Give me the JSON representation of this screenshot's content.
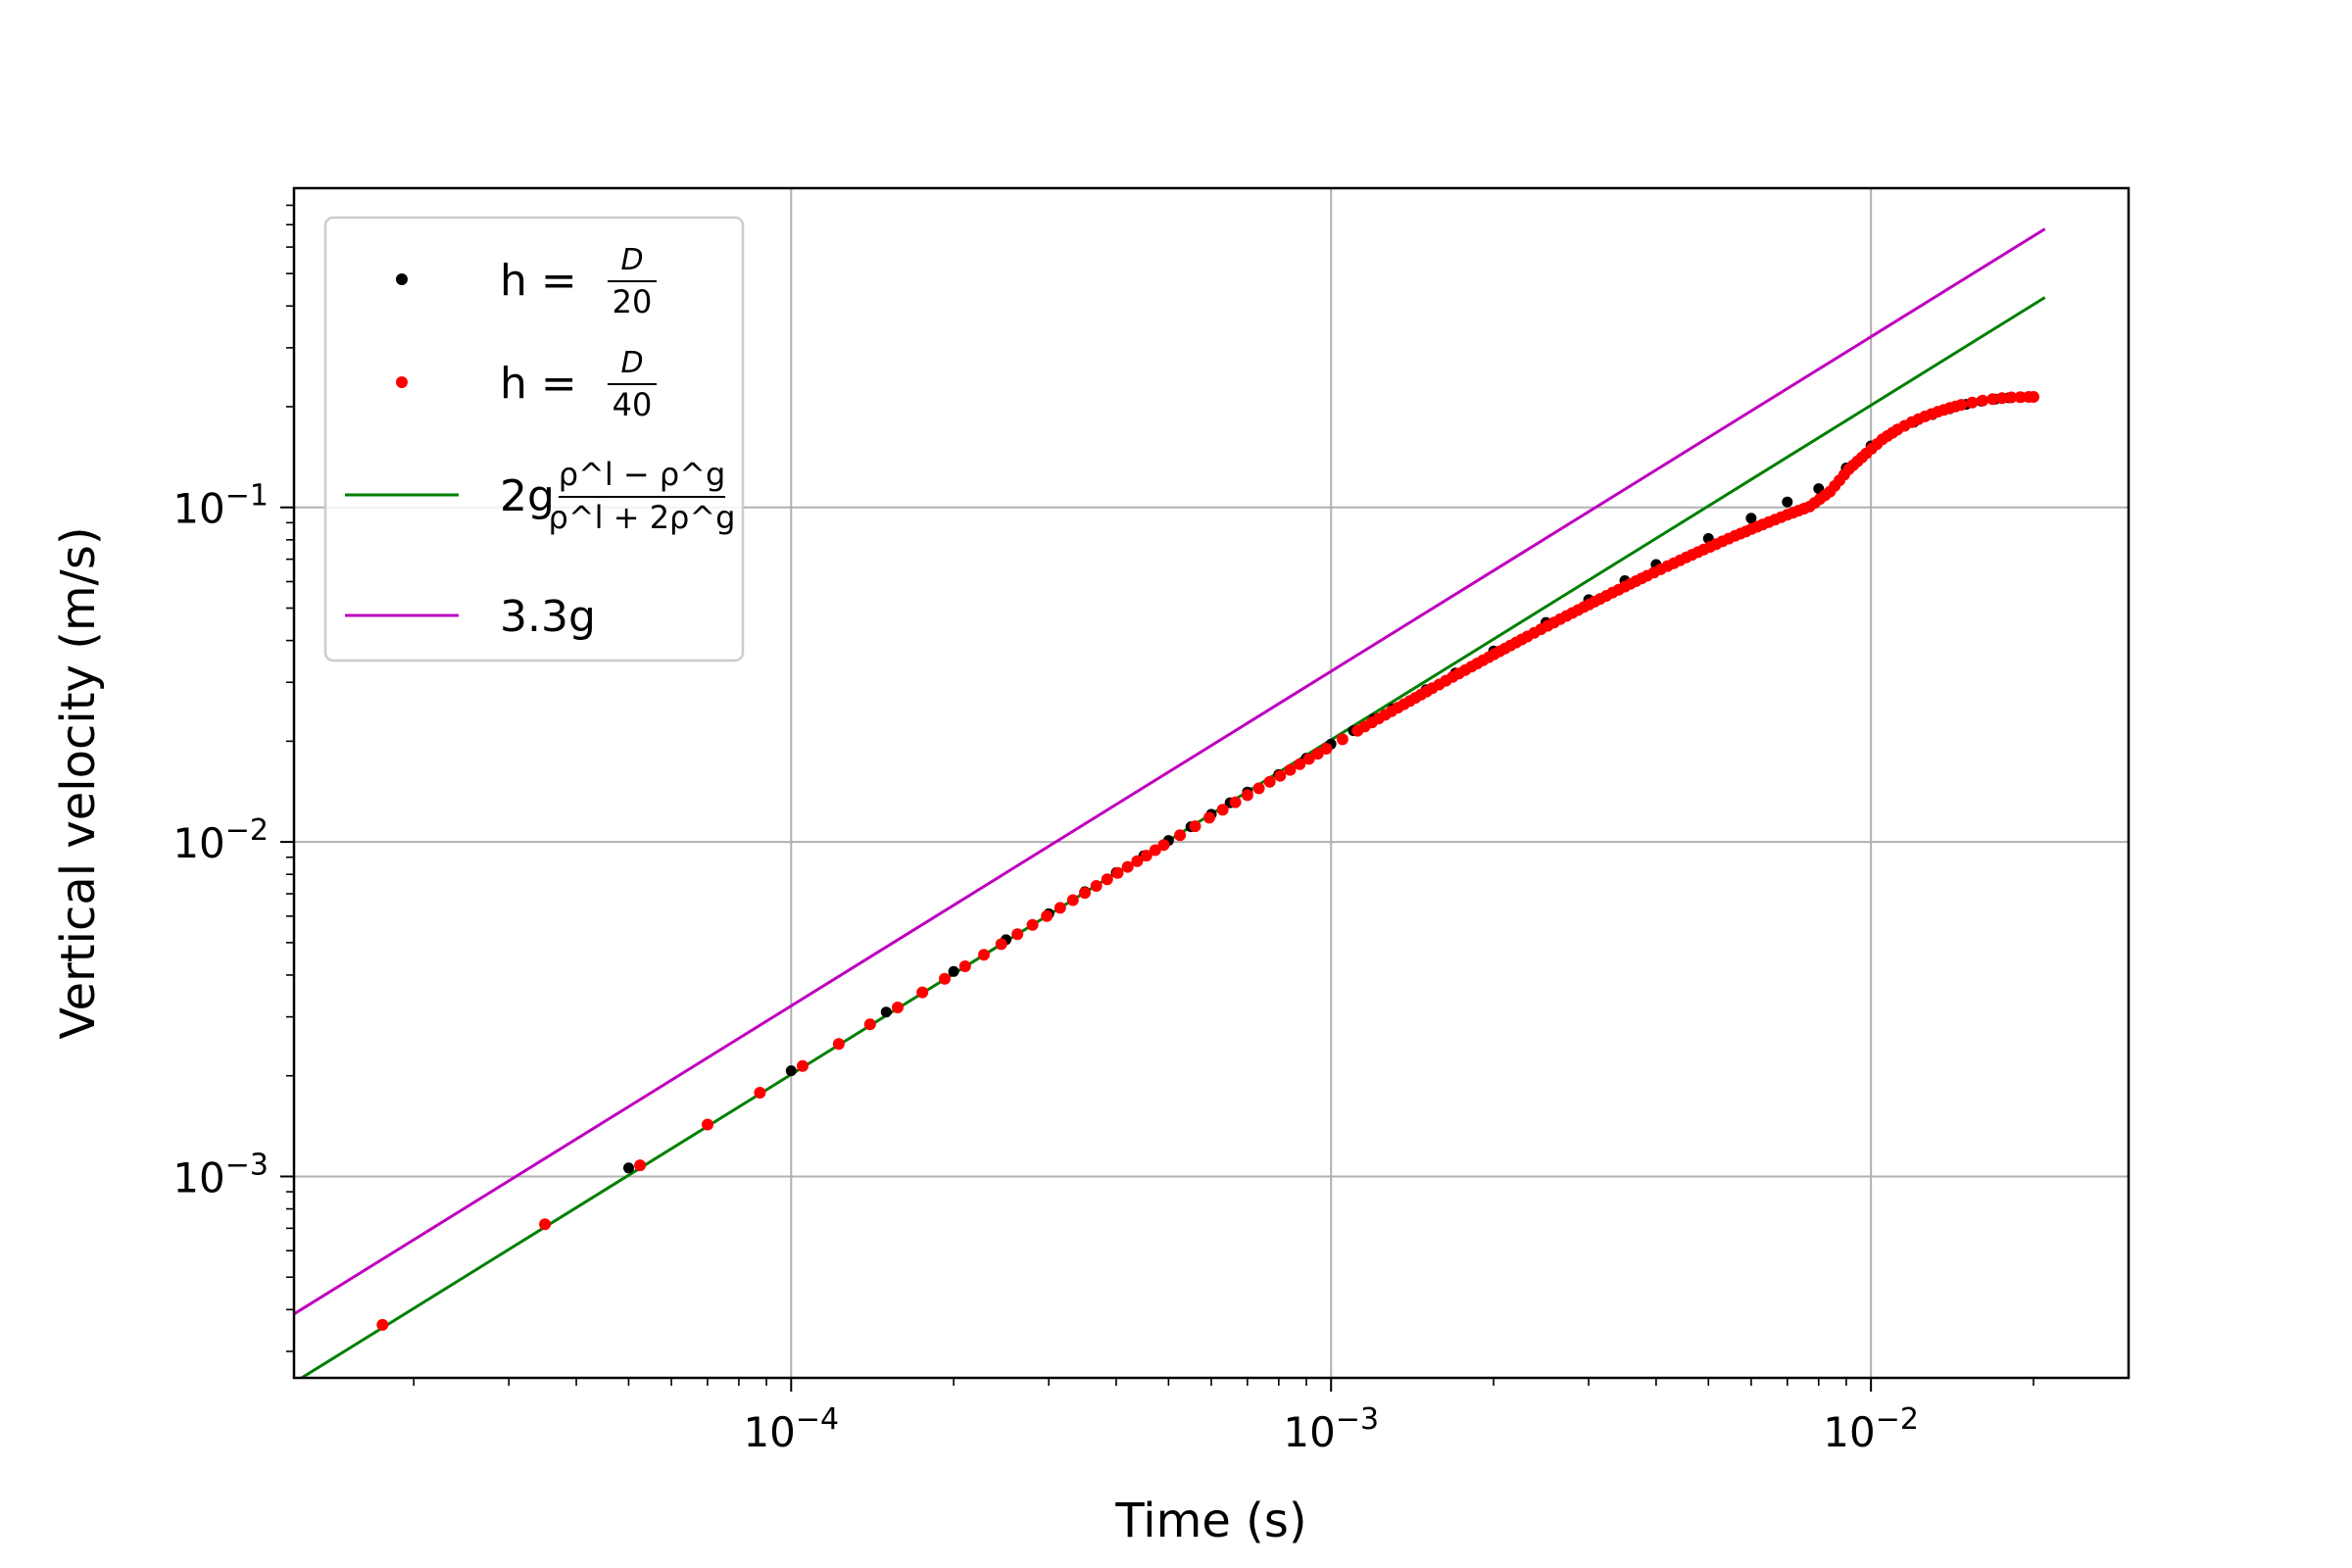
{
  "chart_data": {
    "type": "scatter",
    "xlabel": "Time (s)",
    "ylabel": "Vertical velocity (m/s)",
    "xscale": "log",
    "yscale": "log",
    "xlim": [
      1.2e-05,
      0.03
    ],
    "ylim": [
      0.00025,
      0.9
    ],
    "grid": true,
    "legend_position": "top-left",
    "x_ticks": [
      {
        "value": 0.0001,
        "base": "10",
        "exp": "−4"
      },
      {
        "value": 0.001,
        "base": "10",
        "exp": "−3"
      },
      {
        "value": 0.01,
        "base": "10",
        "exp": "−2"
      }
    ],
    "y_ticks": [
      {
        "value": 0.001,
        "base": "10",
        "exp": "−3"
      },
      {
        "value": 0.01,
        "base": "10",
        "exp": "−2"
      },
      {
        "value": 0.1,
        "base": "10",
        "exp": "−1"
      }
    ],
    "series": [
      {
        "name": "h = D/20",
        "legend": {
          "prefix": "h = ",
          "num": "D",
          "den": "20"
        },
        "kind": "scatter",
        "color": "#000000",
        "x": [
          5e-05,
          0.0001,
          0.00015,
          0.0002,
          0.00025,
          0.0003,
          0.00035,
          0.0004,
          0.00045,
          0.0005,
          0.00055,
          0.0006,
          0.00065,
          0.0007,
          0.0008,
          0.0009,
          0.001,
          0.0011,
          0.0012,
          0.0013,
          0.0015,
          0.0017,
          0.002,
          0.0025,
          0.003,
          0.0035,
          0.004,
          0.005,
          0.006,
          0.007,
          0.008,
          0.009,
          0.01,
          0.011,
          0.012,
          0.013,
          0.014,
          0.015,
          0.016,
          0.017,
          0.018,
          0.019,
          0.02
        ],
        "y": [
          0.00106,
          0.00207,
          0.0031,
          0.0041,
          0.0051,
          0.0061,
          0.0071,
          0.0081,
          0.0091,
          0.0101,
          0.0111,
          0.0121,
          0.0131,
          0.0141,
          0.0159,
          0.0178,
          0.0196,
          0.0215,
          0.0233,
          0.025,
          0.0285,
          0.032,
          0.0372,
          0.0453,
          0.053,
          0.0604,
          0.0675,
          0.0807,
          0.0928,
          0.1038,
          0.1138,
          0.1312,
          0.1527,
          0.1675,
          0.1796,
          0.1894,
          0.1971,
          0.2032,
          0.2077,
          0.2108,
          0.2126,
          0.2134,
          0.2137
        ]
      },
      {
        "name": "h = D/40",
        "legend": {
          "prefix": "h = ",
          "num": "D",
          "den": "40"
        },
        "kind": "scatter",
        "color": "#ff0000",
        "x": [
          1.75e-05,
          3.5e-05,
          5.25e-05,
          7e-05,
          8.75e-05,
          0.000105,
          0.0001225,
          0.00014,
          0.0001575,
          0.000175,
          0.0001925,
          0.00021,
          0.0002275,
          0.000245,
          0.0002625,
          0.00028,
          0.0002975,
          0.000315,
          0.0003325,
          0.00035,
          0.0003675,
          0.000385,
          0.0004025,
          0.00042,
          0.0004375,
          0.000455,
          0.0004725,
          0.00049,
          0.000525,
          0.00056,
          0.000595,
          0.00063,
          0.000665,
          0.0007,
          0.000735,
          0.00077,
          0.000805,
          0.00084,
          0.000875,
          0.00091,
          0.000945,
          0.00098,
          0.00105,
          0.00112,
          0.00119,
          0.00126,
          0.00133,
          0.0014,
          0.00154,
          0.00168,
          0.00182,
          0.00196,
          0.0021,
          0.00231,
          0.00252,
          0.00273,
          0.00294,
          0.00315,
          0.0035,
          0.00385,
          0.0042,
          0.00455,
          0.0049,
          0.0056,
          0.0063,
          0.007,
          0.0077,
          0.0084,
          0.0091,
          0.0098,
          0.0105,
          0.0112,
          0.0119,
          0.0126,
          0.0133,
          0.014,
          0.0147,
          0.0154,
          0.0161,
          0.0168,
          0.0175,
          0.0182,
          0.0189,
          0.0196,
          0.02
        ],
        "y": [
          0.00036,
          0.00072,
          0.00108,
          0.00143,
          0.00178,
          0.00214,
          0.00249,
          0.00285,
          0.0032,
          0.00355,
          0.0039,
          0.00425,
          0.0046,
          0.00495,
          0.0053,
          0.00565,
          0.006,
          0.00635,
          0.0067,
          0.00704,
          0.00739,
          0.00773,
          0.00808,
          0.00842,
          0.00876,
          0.0091,
          0.00945,
          0.00979,
          0.01047,
          0.01114,
          0.01181,
          0.01248,
          0.01314,
          0.0138,
          0.01446,
          0.01512,
          0.01577,
          0.01642,
          0.01707,
          0.01771,
          0.01835,
          0.01899,
          0.02026,
          0.02151,
          0.02275,
          0.02398,
          0.0252,
          0.0264,
          0.02879,
          0.03113,
          0.03342,
          0.03567,
          0.03788,
          0.04113,
          0.04429,
          0.04737,
          0.05036,
          0.05327,
          0.05797,
          0.06247,
          0.06677,
          0.07089,
          0.07483,
          0.08219,
          0.08891,
          0.09502,
          0.10056,
          0.11153,
          0.13,
          0.145,
          0.1598,
          0.1709,
          0.1798,
          0.1871,
          0.1932,
          0.1983,
          0.2025,
          0.2059,
          0.2086,
          0.2107,
          0.2122,
          0.2132,
          0.2137,
          0.2139,
          0.2139
        ]
      },
      {
        "name": "2g(ρ^l − ρ^g)/(ρ^l + 2ρ^g)",
        "legend": {
          "prefix": "2g",
          "num": "ρ^l − ρ^g",
          "den": "ρ^l + 2ρ^g"
        },
        "kind": "line",
        "color": "#008000",
        "x": [
          1.2e-05,
          0.021
        ],
        "y": [
          0.000242,
          0.4242
        ]
      },
      {
        "name": "3.3g",
        "legend": {
          "prefix": "3.3g",
          "num": "",
          "den": ""
        },
        "kind": "line",
        "color": "#bf00bf",
        "x": [
          1.2e-05,
          0.021
        ],
        "y": [
          0.000388,
          0.6796
        ]
      }
    ]
  }
}
